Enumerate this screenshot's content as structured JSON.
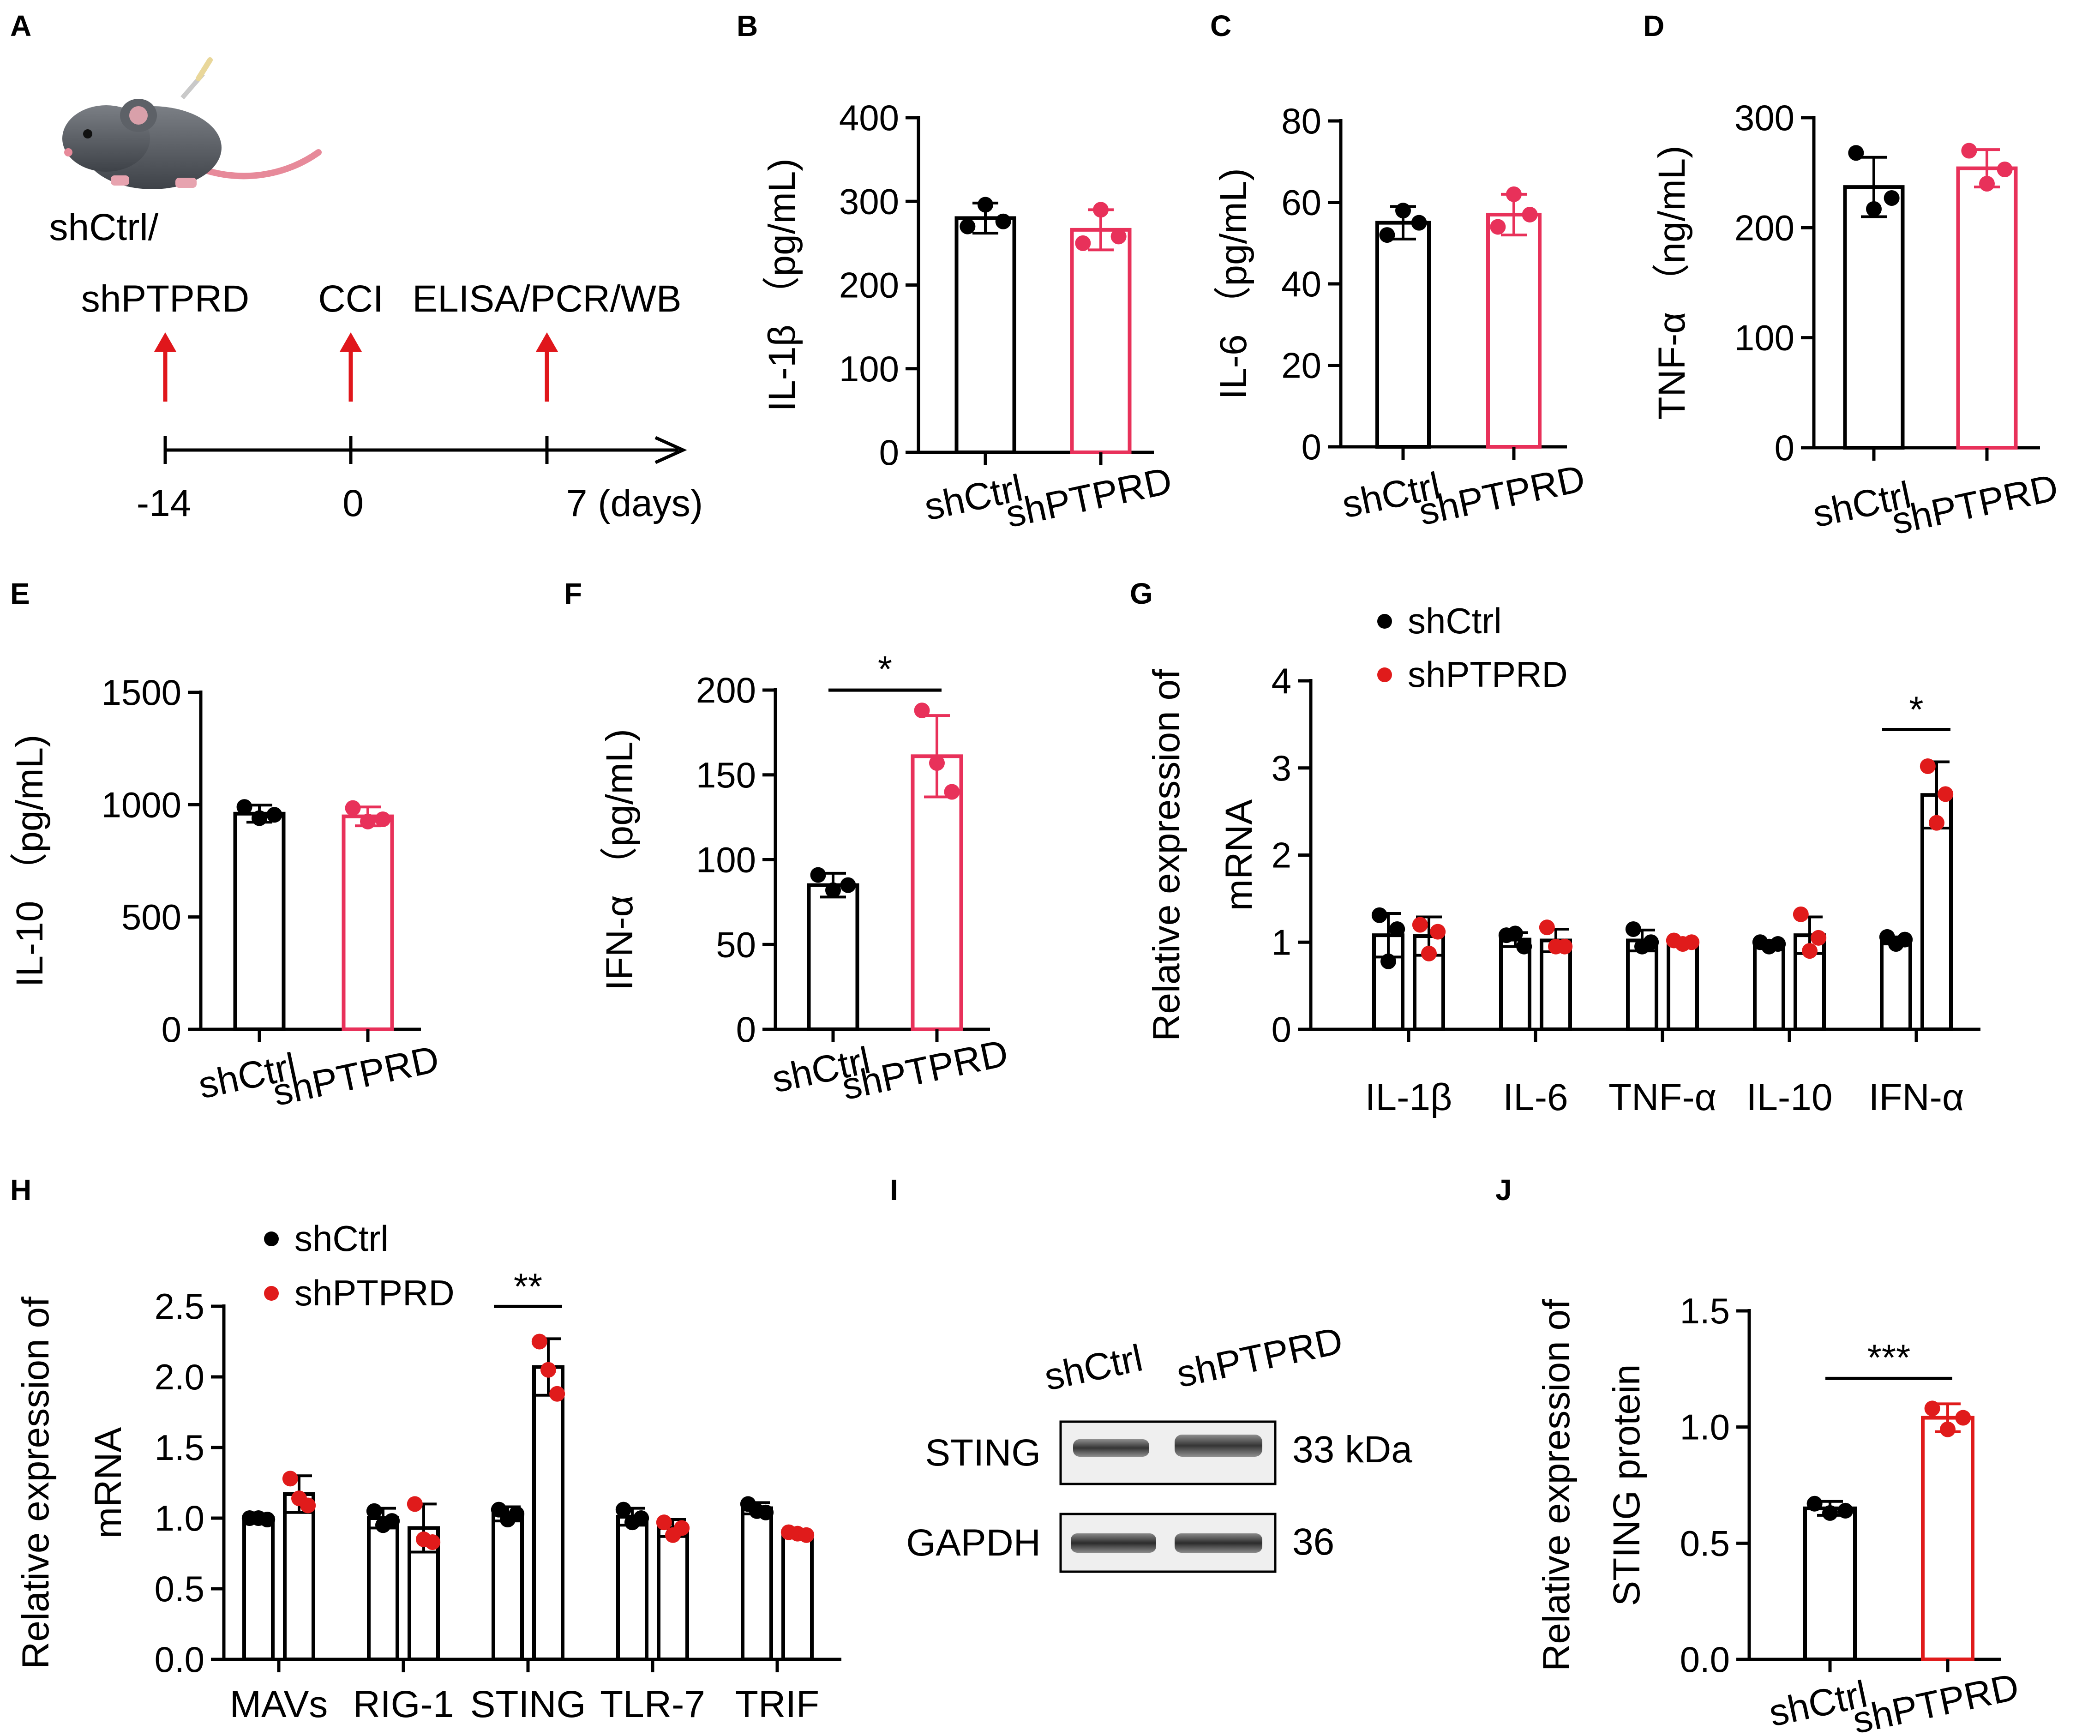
{
  "colors": {
    "ctrl": "#000000",
    "ko": "#e8315a",
    "red": "#e01b1b",
    "arrow": "#e0161b"
  },
  "panel_labels": [
    "A",
    "B",
    "C",
    "D",
    "E",
    "F",
    "G",
    "H",
    "I",
    "J"
  ],
  "timeline": {
    "groups_line1": "shCtrl/",
    "groups_line2": "shPTPRD",
    "event_cci": "CCI",
    "event_assay": "ELISA/PCR/WB",
    "day_start": "-14",
    "day_zero": "0",
    "day_end": "7 (days)"
  },
  "western_blot": {
    "lane_labels": [
      "shCtrl",
      "shPTPRD"
    ],
    "rows": [
      {
        "protein": "STING",
        "size": "33 kDa"
      },
      {
        "protein": "GAPDH",
        "size": "36"
      }
    ]
  },
  "chart_data": [
    {
      "id": "B",
      "type": "bar",
      "title": "",
      "ylabel": "IL-1β （pg/mL)",
      "categories": [
        "shCtrl",
        "shPTPRD"
      ],
      "values": [
        280,
        266
      ],
      "errors": [
        18,
        24
      ],
      "points": [
        [
          270,
          296,
          276
        ],
        [
          250,
          290,
          258
        ]
      ],
      "ylim": [
        0,
        400
      ],
      "yticks": [
        0,
        100,
        200,
        300,
        400
      ],
      "tick_labels": [
        "0",
        "100",
        "200",
        "300",
        "400"
      ]
    },
    {
      "id": "C",
      "type": "bar",
      "title": "",
      "ylabel": "IL-6 （pg/mL)",
      "categories": [
        "shCtrl",
        "shPTPRD"
      ],
      "values": [
        55,
        57
      ],
      "errors": [
        4,
        5
      ],
      "points": [
        [
          52,
          58,
          55
        ],
        [
          54,
          62,
          57
        ]
      ],
      "ylim": [
        0,
        80
      ],
      "yticks": [
        0,
        20,
        40,
        60,
        80
      ],
      "tick_labels": [
        "0",
        "20",
        "40",
        "60",
        "80"
      ]
    },
    {
      "id": "D",
      "type": "bar",
      "title": "",
      "ylabel": "TNF-α （ng/mL)",
      "categories": [
        "shCtrl",
        "shPTPRD"
      ],
      "values": [
        237,
        254
      ],
      "errors": [
        27,
        17
      ],
      "points": [
        [
          268,
          217,
          227
        ],
        [
          270,
          240,
          253
        ]
      ],
      "ylim": [
        0,
        300
      ],
      "yticks": [
        0,
        100,
        200,
        300
      ],
      "tick_labels": [
        "0",
        "100",
        "200",
        "300"
      ]
    },
    {
      "id": "E",
      "type": "bar",
      "title": "",
      "ylabel": "IL-10 （pg/mL)",
      "categories": [
        "shCtrl",
        "shPTPRD"
      ],
      "values": [
        960,
        948
      ],
      "errors": [
        38,
        42
      ],
      "points": [
        [
          990,
          940,
          955
        ],
        [
          985,
          925,
          935
        ]
      ],
      "ylim": [
        0,
        1500
      ],
      "yticks": [
        0,
        500,
        1000,
        1500
      ],
      "tick_labels": [
        "0",
        "500",
        "1000",
        "1500"
      ]
    },
    {
      "id": "F",
      "type": "bar",
      "title": "",
      "ylabel": "IFN-α （pg/mL)",
      "categories": [
        "shCtrl",
        "shPTPRD"
      ],
      "values": [
        85,
        161
      ],
      "errors": [
        7,
        24
      ],
      "points": [
        [
          91,
          82,
          85
        ],
        [
          188,
          157,
          140
        ]
      ],
      "ylim": [
        0,
        200
      ],
      "yticks": [
        0,
        50,
        100,
        150,
        200
      ],
      "tick_labels": [
        "0",
        "50",
        "100",
        "150",
        "200"
      ],
      "significance": [
        {
          "between": [
            0,
            1
          ],
          "label": "*"
        }
      ]
    },
    {
      "id": "G",
      "type": "bar",
      "title": "",
      "ylabel": "Relative expression of mRNA",
      "categories": [
        "IL-1β",
        "IL-6",
        "TNF-α",
        "IL-10",
        "IFN-α"
      ],
      "series": [
        {
          "name": "shCtrl",
          "values": [
            1.08,
            1.03,
            1.02,
            0.98,
            1.02
          ],
          "errors": [
            0.25,
            0.08,
            0.12,
            0.04,
            0.04
          ],
          "points": [
            [
              1.31,
              0.78,
              1.15
            ],
            [
              1.08,
              1.1,
              0.95
            ],
            [
              1.15,
              0.95,
              1.0
            ],
            [
              1.0,
              0.95,
              0.98
            ],
            [
              1.06,
              0.98,
              1.03
            ]
          ]
        },
        {
          "name": "shPTPRD",
          "values": [
            1.07,
            1.02,
            1.0,
            1.08,
            2.69
          ],
          "errors": [
            0.22,
            0.13,
            0.03,
            0.21,
            0.38
          ],
          "points": [
            [
              1.2,
              0.87,
              1.12
            ],
            [
              1.17,
              0.95,
              0.95
            ],
            [
              1.02,
              0.98,
              1.0
            ],
            [
              1.32,
              0.9,
              1.05
            ],
            [
              3.02,
              2.37,
              2.7
            ]
          ]
        }
      ],
      "ylim": [
        0,
        4
      ],
      "yticks": [
        0,
        1,
        2,
        3,
        4
      ],
      "tick_labels": [
        "0",
        "1",
        "2",
        "3",
        "4"
      ],
      "legend": "top-left",
      "significance": [
        {
          "category": 4,
          "label": "*"
        }
      ]
    },
    {
      "id": "H",
      "type": "bar",
      "title": "",
      "ylabel": "Relative expression of mRNA",
      "categories": [
        "MAVs",
        "RIG-1",
        "STING",
        "TLR-7",
        "TRIF"
      ],
      "series": [
        {
          "name": "shCtrl",
          "values": [
            1.0,
            1.0,
            1.03,
            1.01,
            1.07
          ],
          "errors": [
            0.01,
            0.07,
            0.05,
            0.06,
            0.04
          ],
          "points": [
            [
              1.0,
              1.0,
              0.99
            ],
            [
              1.05,
              0.95,
              0.98
            ],
            [
              1.06,
              0.99,
              1.03
            ],
            [
              1.06,
              0.97,
              1.0
            ],
            [
              1.1,
              1.05,
              1.04
            ]
          ]
        },
        {
          "name": "shPTPRD",
          "values": [
            1.17,
            0.93,
            2.07,
            0.93,
            0.89
          ],
          "errors": [
            0.13,
            0.17,
            0.2,
            0.06,
            0.01
          ],
          "points": [
            [
              1.28,
              1.14,
              1.09
            ],
            [
              1.1,
              0.85,
              0.83
            ],
            [
              2.25,
              2.05,
              1.88
            ],
            [
              0.97,
              0.88,
              0.93
            ],
            [
              0.9,
              0.89,
              0.88
            ]
          ]
        }
      ],
      "ylim": [
        0,
        2.5
      ],
      "yticks": [
        0,
        0.5,
        1.0,
        1.5,
        2.0,
        2.5
      ],
      "tick_labels": [
        "0.0",
        "0.5",
        "1.0",
        "1.5",
        "2.0",
        "2.5"
      ],
      "legend": "top-left",
      "significance": [
        {
          "category": 2,
          "label": "**"
        }
      ]
    },
    {
      "id": "J",
      "type": "bar",
      "title": "",
      "ylabel": "Relative expression of STING protein",
      "categories": [
        "shCtrl",
        "shPTPRD"
      ],
      "values": [
        0.65,
        1.04
      ],
      "errors": [
        0.03,
        0.06
      ],
      "points": [
        [
          0.67,
          0.63,
          0.64
        ],
        [
          1.08,
          0.99,
          1.04
        ]
      ],
      "ylim": [
        0,
        1.5
      ],
      "yticks": [
        0,
        0.5,
        1.0,
        1.5
      ],
      "tick_labels": [
        "0.0",
        "0.5",
        "1.0",
        "1.5"
      ],
      "significance": [
        {
          "between": [
            0,
            1
          ],
          "label": "***"
        }
      ]
    }
  ]
}
